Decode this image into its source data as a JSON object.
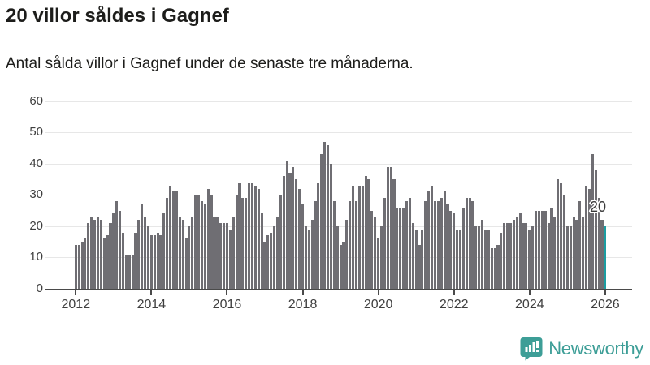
{
  "header": {
    "title": "20 villor såldes i Gagnef",
    "subtitle": "Antal sålda villor i Gagnef under de senaste tre månaderna."
  },
  "chart_data": {
    "type": "bar",
    "title": "20 villor såldes i Gagnef",
    "subtitle": "Antal sålda villor i Gagnef under de senaste tre månaderna.",
    "x_start": "2012-01",
    "x_end": "2026-01",
    "x_tick_labels": [
      "2012",
      "2014",
      "2016",
      "2018",
      "2020",
      "2022",
      "2024",
      "2026"
    ],
    "x_tick_month_index": [
      0,
      24,
      48,
      72,
      96,
      120,
      144,
      168
    ],
    "y_ticks": [
      0,
      10,
      20,
      30,
      40,
      50,
      60
    ],
    "ylim": [
      0,
      60
    ],
    "grid": "horizontal",
    "legend": "none",
    "bar_color": "#6f6e73",
    "values": [
      14,
      14,
      15,
      16,
      21,
      23,
      22,
      23,
      22,
      16,
      17,
      21,
      24,
      28,
      25,
      18,
      11,
      11,
      11,
      18,
      22,
      27,
      23,
      20,
      17,
      17,
      18,
      17,
      24,
      29,
      33,
      31,
      31,
      23,
      22,
      16,
      20,
      23,
      30,
      30,
      28,
      27,
      32,
      30,
      23,
      23,
      21,
      21,
      21,
      19,
      23,
      30,
      34,
      29,
      29,
      34,
      34,
      33,
      32,
      24,
      15,
      17,
      18,
      20,
      23,
      30,
      36,
      41,
      37,
      39,
      35,
      32,
      27,
      20,
      19,
      22,
      28,
      34,
      43,
      47,
      46,
      40,
      28,
      20,
      14,
      15,
      22,
      28,
      33,
      28,
      33,
      33,
      36,
      35,
      25,
      23,
      16,
      20,
      29,
      39,
      39,
      35,
      26,
      26,
      26,
      28,
      29,
      21,
      19,
      14,
      19,
      28,
      31,
      33,
      28,
      28,
      29,
      31,
      27,
      25,
      24,
      19,
      19,
      26,
      29,
      29,
      28,
      20,
      20,
      22,
      19,
      19,
      13,
      13,
      14,
      18,
      21,
      21,
      21,
      22,
      23,
      24,
      21,
      21,
      19,
      20,
      25,
      25,
      25,
      25,
      21,
      26,
      23,
      35,
      34,
      30,
      20,
      20,
      23,
      22,
      28,
      23,
      33,
      32,
      43,
      38,
      29,
      22,
      20
    ],
    "highlight": {
      "index": 168,
      "value": 20,
      "label": "20",
      "color": "#1b9ea2"
    }
  },
  "annotation": {
    "label": "20"
  },
  "branding": {
    "name": "Newsworthy",
    "icon": "newsworthy-bubble-chart-icon",
    "color": "#3d9e97"
  },
  "colors": {
    "background": "#ffffff",
    "bar": "#6f6e73",
    "highlight": "#1b9ea2",
    "gridline": "#e7e7e7",
    "axis": "#4a4a4a",
    "text": "#1d1d1b",
    "brand": "#3d9e97"
  }
}
